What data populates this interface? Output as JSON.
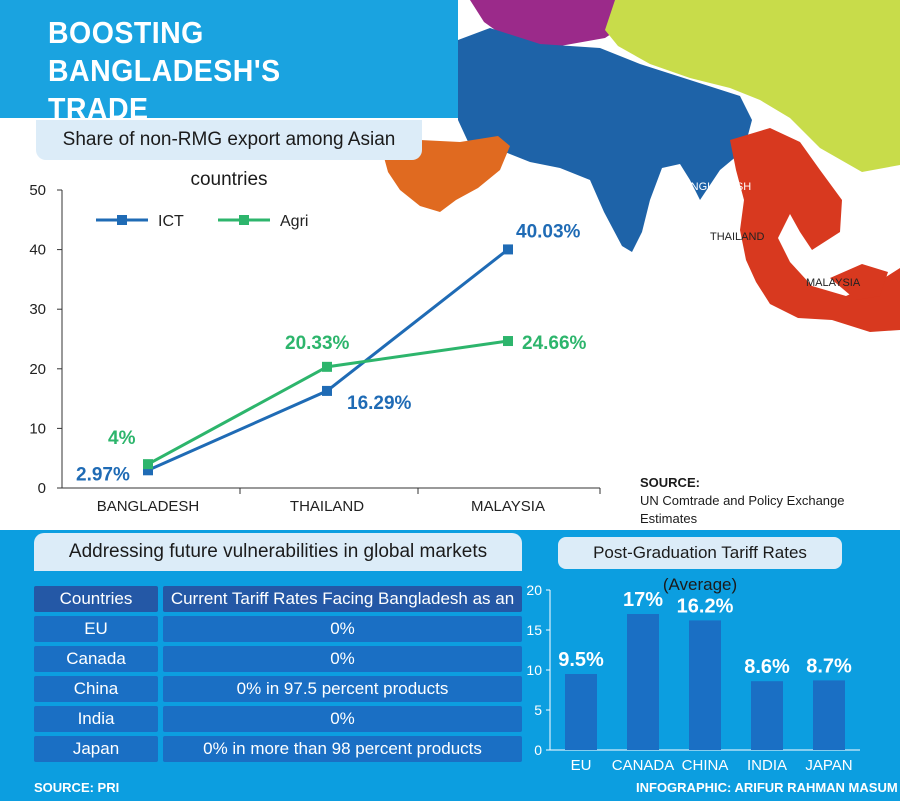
{
  "header": {
    "title_line1": "BOOSTING BANGLADESH'S",
    "title_line2": "TRADE COMPETITIVENESS"
  },
  "map": {
    "labels": [
      "BANGLADESH",
      "THAILAND",
      "MALAYSIA"
    ],
    "colors": {
      "purple": "#9b2a8a",
      "blue": "#1e63a8",
      "lime": "#c8dc4a",
      "orange": "#e06a20",
      "red": "#d8391f",
      "sea": "#ffffff"
    }
  },
  "source_main": {
    "label": "SOURCE:",
    "text": "UN Comtrade and Policy Exchange Estimates"
  },
  "chart_data": [
    {
      "type": "line",
      "title": "Share of non-RMG export among Asian countries",
      "categories": [
        "BANGLADESH",
        "THAILAND",
        "MALAYSIA"
      ],
      "ylim": [
        0,
        50
      ],
      "yticks": [
        0,
        10,
        20,
        30,
        40,
        50
      ],
      "grid": false,
      "legend": "top-left",
      "series": [
        {
          "name": "ICT",
          "values": [
            2.97,
            16.29,
            40.03
          ],
          "labels": [
            "2.97%",
            "16.29%",
            "40.03%"
          ],
          "color": "#1f6bb5"
        },
        {
          "name": "Agri",
          "values": [
            4,
            20.33,
            24.66
          ],
          "labels": [
            "4%",
            "20.33%",
            "24.66%"
          ],
          "color": "#2db56c"
        }
      ]
    },
    {
      "type": "bar",
      "title": "Post-Graduation Tariff Rates (Average)",
      "categories": [
        "EU",
        "CANADA",
        "CHINA",
        "INDIA",
        "JAPAN"
      ],
      "values": [
        9.5,
        17,
        16.2,
        8.6,
        8.7
      ],
      "labels": [
        "9.5%",
        "17%",
        "16.2%",
        "8.6%",
        "8.7%"
      ],
      "ylim": [
        0,
        20
      ],
      "yticks": [
        0,
        5,
        10,
        15,
        20
      ],
      "color": "#1a6fc4"
    }
  ],
  "tariff_table": {
    "title": "Addressing future vulnerabilities in global markets",
    "headers": [
      "Countries",
      "Current Tariff Rates Facing Bangladesh as an LDC"
    ],
    "rows": [
      [
        "EU",
        "0%"
      ],
      [
        "Canada",
        "0%"
      ],
      [
        "China",
        "0% in 97.5 percent products"
      ],
      [
        "India",
        "0%"
      ],
      [
        "Japan",
        "0% in more than 98 percent products"
      ]
    ]
  },
  "footer": {
    "source": "SOURCE: PRI",
    "credit": "INFOGRAPHIC: ARIFUR RAHMAN MASUM"
  },
  "colors": {
    "title_bg": "#1aa3e0",
    "panel_bg": "#0c9ee0",
    "light_panel": "#dcecf8",
    "row_bg": "#1a6fc4",
    "header_bg": "#2458a6"
  }
}
